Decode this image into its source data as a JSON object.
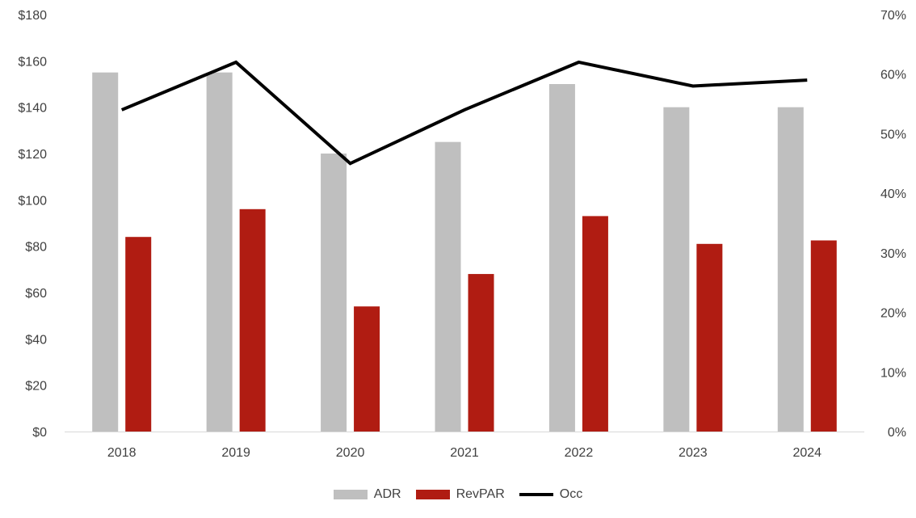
{
  "chart_data": {
    "type": "bar",
    "categories": [
      "2018",
      "2019",
      "2020",
      "2021",
      "2022",
      "2023",
      "2024"
    ],
    "series": [
      {
        "name": "ADR",
        "kind": "bar",
        "axis": "left",
        "color": "#bfbfbf",
        "values": [
          155,
          155,
          120,
          125,
          150,
          140,
          140
        ]
      },
      {
        "name": "RevPAR",
        "kind": "bar",
        "axis": "left",
        "color": "#b01c12",
        "values": [
          84,
          96,
          54,
          68,
          93,
          81,
          82.5
        ]
      },
      {
        "name": "Occ",
        "kind": "line",
        "axis": "right",
        "color": "#000000",
        "values": [
          0.54,
          0.62,
          0.45,
          0.54,
          0.62,
          0.58,
          0.59
        ]
      }
    ],
    "y_left": {
      "range": [
        0,
        180
      ],
      "step": 20,
      "tick_labels": [
        "$0",
        "$20",
        "$40",
        "$60",
        "$80",
        "$100",
        "$120",
        "$140",
        "$160",
        "$180"
      ]
    },
    "y_right": {
      "range": [
        0,
        0.7
      ],
      "step": 0.1,
      "tick_labels": [
        "0%",
        "10%",
        "20%",
        "30%",
        "40%",
        "50%",
        "60%",
        "70%"
      ]
    },
    "grid": false,
    "legend_position": "bottom",
    "title": "",
    "xlabel": "",
    "ylabel": ""
  }
}
